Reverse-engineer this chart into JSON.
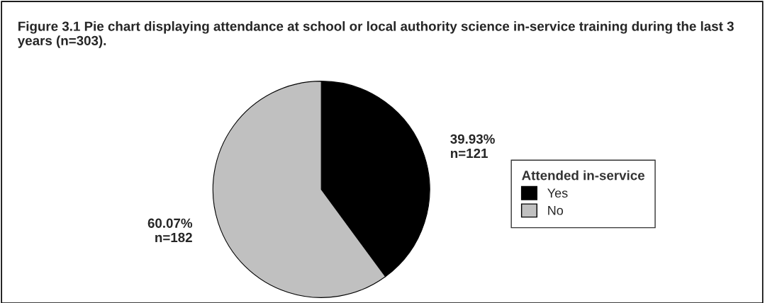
{
  "chart_data": {
    "type": "pie",
    "title": "Figure 3.1 Pie chart displaying attendance at school or local authority science in-service training during the last 3 years (n=303).",
    "categories": [
      "Yes",
      "No"
    ],
    "values": [
      39.93,
      60.07
    ],
    "colors": [
      "#000000",
      "#c0c0c0"
    ],
    "value_labels": [
      "39.93%\nn=121",
      "60.07%\nn=182"
    ],
    "legend_title": "Attended in-service",
    "legend": "right"
  }
}
